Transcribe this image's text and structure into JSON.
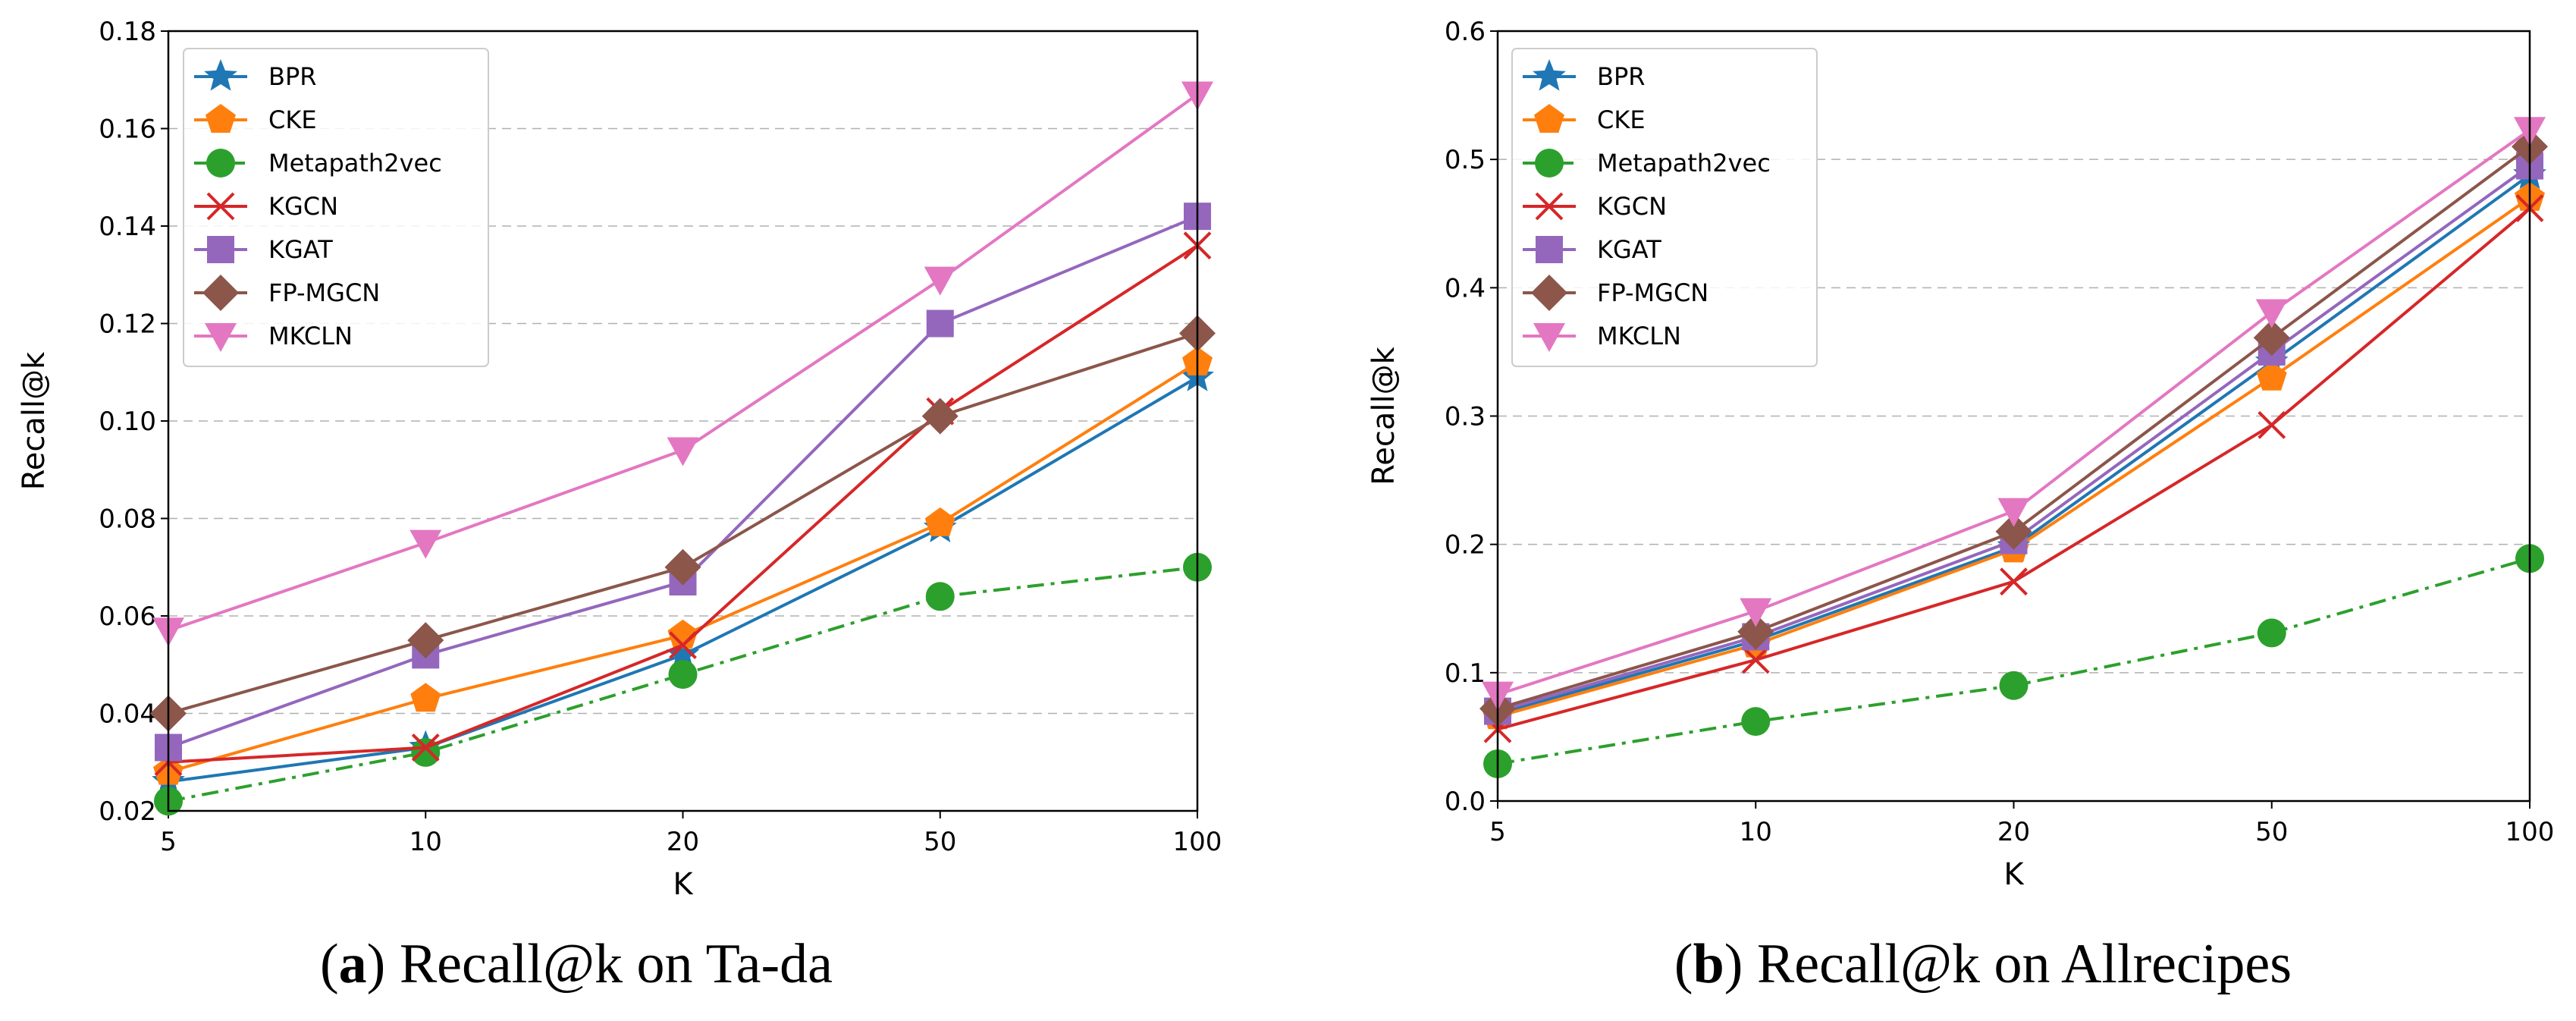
{
  "chart_data": [
    {
      "type": "line",
      "caption_letter": "a",
      "caption_text": "Recall@k on Ta-da",
      "xlabel": "K",
      "ylabel": "Recall@k",
      "categories": [
        "5",
        "10",
        "20",
        "50",
        "100"
      ],
      "ylim": [
        0.02,
        0.18
      ],
      "yticks": [
        "0.02",
        "0.04",
        "0.06",
        "0.08",
        "0.10",
        "0.12",
        "0.14",
        "0.16",
        "0.18"
      ],
      "grid": "horizontal dashed",
      "legend": "top-left",
      "series": [
        {
          "name": "BPR",
          "values": [
            0.026,
            0.033,
            0.052,
            0.078,
            0.109
          ]
        },
        {
          "name": "CKE",
          "values": [
            0.028,
            0.043,
            0.056,
            0.079,
            0.112
          ]
        },
        {
          "name": "Metapath2vec",
          "values": [
            0.022,
            0.032,
            0.048,
            0.064,
            0.07
          ]
        },
        {
          "name": "KGCN",
          "values": [
            0.03,
            0.033,
            0.054,
            0.102,
            0.136
          ]
        },
        {
          "name": "KGAT",
          "values": [
            0.033,
            0.052,
            0.067,
            0.12,
            0.142
          ]
        },
        {
          "name": "FP-MGCN",
          "values": [
            0.04,
            0.055,
            0.07,
            0.101,
            0.118
          ]
        },
        {
          "name": "MKCLN",
          "values": [
            0.057,
            0.075,
            0.094,
            0.129,
            0.167
          ]
        }
      ]
    },
    {
      "type": "line",
      "caption_letter": "b",
      "caption_text": "Recall@k on Allrecipes",
      "xlabel": "K",
      "ylabel": "Recall@k",
      "categories": [
        "5",
        "10",
        "20",
        "50",
        "100"
      ],
      "ylim": [
        0.0,
        0.6
      ],
      "yticks": [
        "0.0",
        "0.1",
        "0.2",
        "0.3",
        "0.4",
        "0.5",
        "0.6"
      ],
      "grid": "horizontal dashed",
      "legend": "top-left",
      "series": [
        {
          "name": "BPR",
          "values": [
            0.068,
            0.125,
            0.198,
            0.342,
            0.488
          ]
        },
        {
          "name": "CKE",
          "values": [
            0.066,
            0.122,
            0.196,
            0.33,
            0.47
          ]
        },
        {
          "name": "Metapath2vec",
          "values": [
            0.029,
            0.062,
            0.09,
            0.131,
            0.189
          ]
        },
        {
          "name": "KGCN",
          "values": [
            0.056,
            0.11,
            0.171,
            0.293,
            0.462
          ]
        },
        {
          "name": "KGAT",
          "values": [
            0.07,
            0.128,
            0.203,
            0.35,
            0.495
          ]
        },
        {
          "name": "FP-MGCN",
          "values": [
            0.072,
            0.132,
            0.21,
            0.361,
            0.51
          ]
        },
        {
          "name": "MKCLN",
          "values": [
            0.083,
            0.148,
            0.226,
            0.381,
            0.523
          ]
        }
      ]
    }
  ],
  "series_colors": [
    "#1f77b4",
    "#ff7f0e",
    "#2ca02c",
    "#d62728",
    "#9467bd",
    "#8c564b",
    "#e377c2"
  ],
  "series_markers": [
    "star",
    "pentagon",
    "circle",
    "x",
    "square",
    "diamond",
    "triangle-down"
  ],
  "series_linestyles": [
    "solid",
    "solid",
    "dashdot",
    "solid",
    "solid",
    "solid",
    "solid"
  ]
}
